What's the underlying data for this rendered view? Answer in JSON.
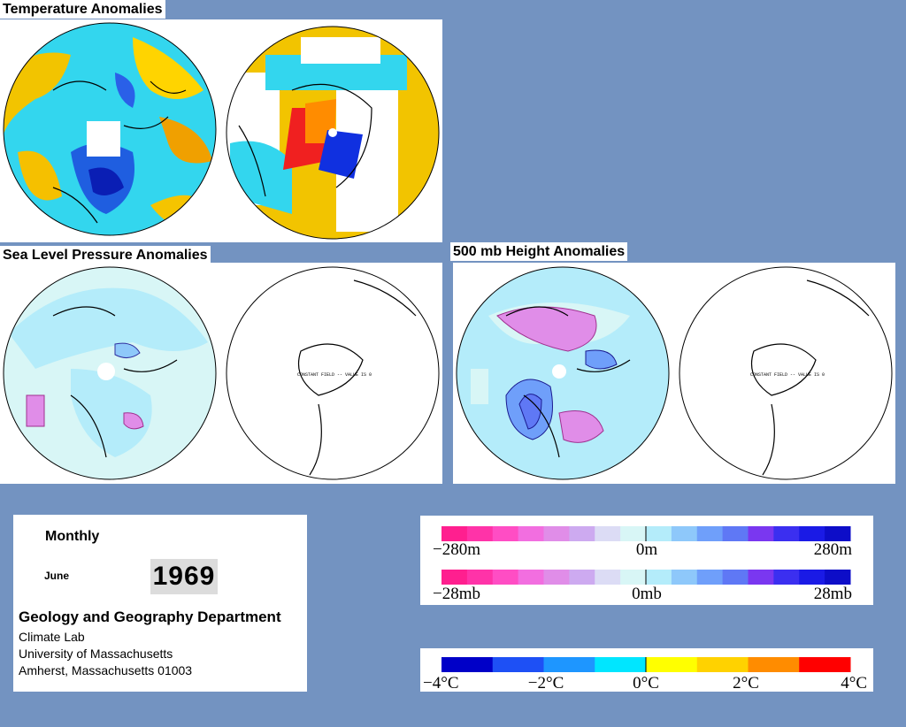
{
  "titles": {
    "temperature": "Temperature Anomalies",
    "slp": "Sea Level Pressure Anomalies",
    "h500": "500 mb Height Anomalies"
  },
  "maps": {
    "constant_field_note": "CONSTANT FIELD -- VALUE IS 0"
  },
  "info": {
    "heading": "Monthly",
    "month": "June",
    "year": "1969",
    "department": "Geology and Geography Department",
    "address_lines": [
      "Climate Lab",
      "University of Massachusetts",
      "Amherst, Massachusetts 01003"
    ]
  },
  "legends": {
    "height": {
      "labels": [
        "−280m",
        "0m",
        "280m"
      ]
    },
    "pressure": {
      "labels": [
        "−28mb",
        "0mb",
        "28mb"
      ]
    },
    "temperature": {
      "labels": [
        "−4°C",
        "−2°C",
        "0°C",
        "2°C",
        "4°C"
      ]
    }
  },
  "colors": {
    "background": "#7393c1",
    "anomaly_scale": [
      "#ff1f8f",
      "#ff33a8",
      "#ff4dc4",
      "#f26ee0",
      "#e08de8",
      "#cdaaf0",
      "#dcdcf5",
      "#d8f6f6",
      "#b4ecfa",
      "#8ec8fa",
      "#6f9ffa",
      "#5f78f5",
      "#7a37f0",
      "#3b2ff0",
      "#1a1ae6",
      "#0d0dc8"
    ],
    "temperature_scale": [
      "#0000c8",
      "#1e50f5",
      "#1e96ff",
      "#00e6ff",
      "#ffff00",
      "#ffd200",
      "#ff8c00",
      "#ff0000"
    ]
  }
}
